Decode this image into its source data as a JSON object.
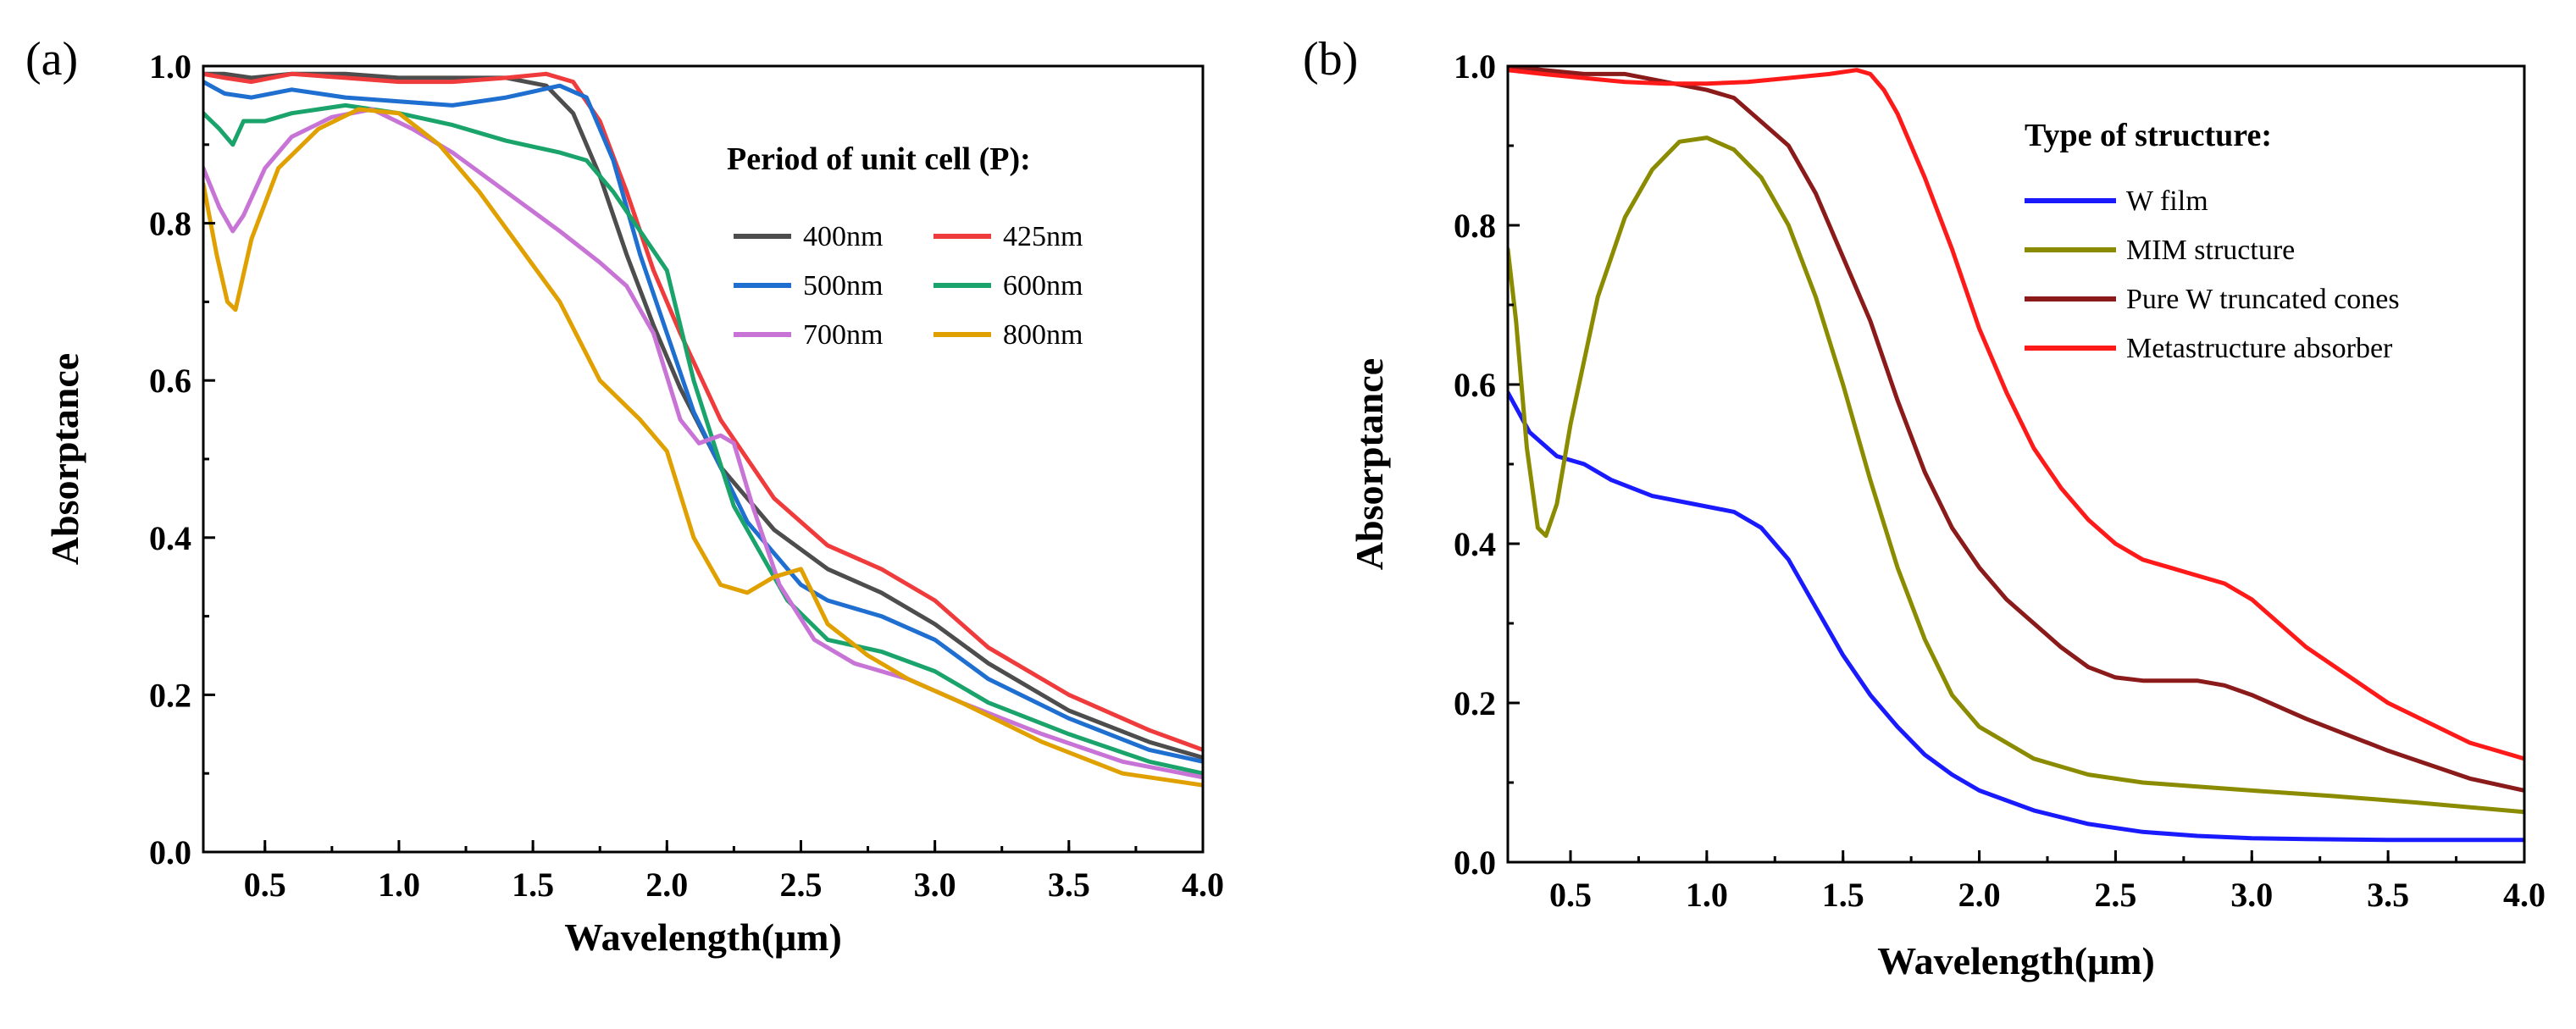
{
  "chart_data": [
    {
      "type": "line",
      "panel_label": "(a)",
      "title": "",
      "xlabel": "Wavelength(μm)",
      "ylabel": "Absorptance",
      "xlim": [
        0.27,
        4.0
      ],
      "ylim": [
        0.0,
        1.0
      ],
      "xticks": [
        0.5,
        1.0,
        1.5,
        2.0,
        2.5,
        3.0,
        3.5,
        4.0
      ],
      "yticks": [
        0.0,
        0.2,
        0.4,
        0.6,
        0.8,
        1.0
      ],
      "xtick_labels": [
        "0.5",
        "1.0",
        "1.5",
        "2.0",
        "2.5",
        "3.0",
        "3.5",
        "4.0"
      ],
      "ytick_labels": [
        "0.0",
        "0.2",
        "0.4",
        "0.6",
        "0.8",
        "1.0"
      ],
      "grid": false,
      "legend_title": "Period of unit cell (P):",
      "legend_position": "top-right",
      "series": [
        {
          "name": "400nm",
          "color": "#4d4d4d",
          "x": [
            0.27,
            0.35,
            0.45,
            0.6,
            0.8,
            1.0,
            1.2,
            1.4,
            1.55,
            1.65,
            1.75,
            1.85,
            1.95,
            2.05,
            2.2,
            2.4,
            2.6,
            2.8,
            3.0,
            3.2,
            3.5,
            3.8,
            4.0
          ],
          "y": [
            0.99,
            0.99,
            0.985,
            0.99,
            0.99,
            0.985,
            0.985,
            0.985,
            0.975,
            0.94,
            0.86,
            0.76,
            0.67,
            0.59,
            0.49,
            0.41,
            0.36,
            0.33,
            0.29,
            0.24,
            0.18,
            0.14,
            0.12
          ]
        },
        {
          "name": "425nm",
          "color": "#ef3b3b",
          "x": [
            0.27,
            0.35,
            0.45,
            0.6,
            0.8,
            1.0,
            1.2,
            1.4,
            1.55,
            1.65,
            1.75,
            1.85,
            1.95,
            2.05,
            2.2,
            2.4,
            2.6,
            2.8,
            3.0,
            3.2,
            3.5,
            3.8,
            4.0
          ],
          "y": [
            0.99,
            0.985,
            0.98,
            0.99,
            0.985,
            0.98,
            0.98,
            0.985,
            0.99,
            0.98,
            0.93,
            0.84,
            0.74,
            0.66,
            0.55,
            0.45,
            0.39,
            0.36,
            0.32,
            0.26,
            0.2,
            0.155,
            0.13
          ]
        },
        {
          "name": "500nm",
          "color": "#1f6fd1",
          "x": [
            0.27,
            0.35,
            0.45,
            0.6,
            0.8,
            1.0,
            1.2,
            1.4,
            1.6,
            1.7,
            1.8,
            1.9,
            2.0,
            2.1,
            2.3,
            2.5,
            2.6,
            2.8,
            3.0,
            3.2,
            3.5,
            3.8,
            4.0
          ],
          "y": [
            0.98,
            0.965,
            0.96,
            0.97,
            0.96,
            0.955,
            0.95,
            0.96,
            0.975,
            0.96,
            0.88,
            0.76,
            0.66,
            0.56,
            0.42,
            0.34,
            0.32,
            0.3,
            0.27,
            0.22,
            0.17,
            0.13,
            0.115
          ]
        },
        {
          "name": "600nm",
          "color": "#1aa36a",
          "x": [
            0.27,
            0.33,
            0.38,
            0.42,
            0.5,
            0.6,
            0.8,
            1.0,
            1.2,
            1.4,
            1.6,
            1.7,
            1.8,
            1.9,
            2.0,
            2.1,
            2.25,
            2.45,
            2.6,
            2.8,
            3.0,
            3.2,
            3.5,
            3.8,
            4.0
          ],
          "y": [
            0.94,
            0.92,
            0.9,
            0.93,
            0.93,
            0.94,
            0.95,
            0.94,
            0.925,
            0.905,
            0.89,
            0.88,
            0.84,
            0.79,
            0.74,
            0.6,
            0.44,
            0.32,
            0.27,
            0.255,
            0.23,
            0.19,
            0.15,
            0.115,
            0.1
          ]
        },
        {
          "name": "700nm",
          "color": "#c873d6",
          "x": [
            0.27,
            0.33,
            0.38,
            0.42,
            0.5,
            0.6,
            0.75,
            0.9,
            1.05,
            1.2,
            1.4,
            1.6,
            1.75,
            1.85,
            1.95,
            2.05,
            2.12,
            2.2,
            2.25,
            2.32,
            2.42,
            2.55,
            2.7,
            2.9,
            3.1,
            3.4,
            3.7,
            4.0
          ],
          "y": [
            0.87,
            0.82,
            0.79,
            0.81,
            0.87,
            0.91,
            0.935,
            0.945,
            0.92,
            0.89,
            0.84,
            0.79,
            0.75,
            0.72,
            0.66,
            0.55,
            0.52,
            0.53,
            0.52,
            0.44,
            0.34,
            0.27,
            0.24,
            0.22,
            0.19,
            0.15,
            0.115,
            0.095
          ]
        },
        {
          "name": "800nm",
          "color": "#e0a000",
          "x": [
            0.27,
            0.32,
            0.36,
            0.39,
            0.45,
            0.55,
            0.7,
            0.85,
            1.0,
            1.15,
            1.3,
            1.45,
            1.6,
            1.75,
            1.9,
            2.0,
            2.1,
            2.2,
            2.3,
            2.4,
            2.5,
            2.6,
            2.75,
            2.9,
            3.1,
            3.4,
            3.7,
            4.0
          ],
          "y": [
            0.85,
            0.76,
            0.7,
            0.69,
            0.78,
            0.87,
            0.92,
            0.945,
            0.94,
            0.9,
            0.84,
            0.77,
            0.7,
            0.6,
            0.55,
            0.51,
            0.4,
            0.34,
            0.33,
            0.35,
            0.36,
            0.29,
            0.25,
            0.22,
            0.19,
            0.14,
            0.1,
            0.085
          ]
        }
      ]
    },
    {
      "type": "line",
      "panel_label": "(b)",
      "title": "",
      "xlabel": "Wavelength(μm)",
      "ylabel": "Absorptance",
      "xlim": [
        0.27,
        4.0
      ],
      "ylim": [
        0.0,
        1.0
      ],
      "xticks": [
        0.5,
        1.0,
        1.5,
        2.0,
        2.5,
        3.0,
        3.5,
        4.0
      ],
      "yticks": [
        0.0,
        0.2,
        0.4,
        0.6,
        0.8,
        1.0
      ],
      "xtick_labels": [
        "0.5",
        "1.0",
        "1.5",
        "2.0",
        "2.5",
        "3.0",
        "3.5",
        "4.0"
      ],
      "ytick_labels": [
        "0.0",
        "0.2",
        "0.4",
        "0.6",
        "0.8",
        "1.0"
      ],
      "grid": false,
      "legend_title": "Type of structure:",
      "legend_position": "top-right",
      "series": [
        {
          "name": "W film",
          "color": "#1a1aff",
          "x": [
            0.27,
            0.35,
            0.45,
            0.55,
            0.65,
            0.8,
            0.95,
            1.1,
            1.2,
            1.3,
            1.4,
            1.5,
            1.6,
            1.7,
            1.8,
            1.9,
            2.0,
            2.2,
            2.4,
            2.6,
            2.8,
            3.0,
            3.2,
            3.5,
            4.0
          ],
          "y": [
            0.59,
            0.54,
            0.51,
            0.5,
            0.48,
            0.46,
            0.45,
            0.44,
            0.42,
            0.38,
            0.32,
            0.26,
            0.21,
            0.17,
            0.135,
            0.11,
            0.09,
            0.065,
            0.048,
            0.038,
            0.033,
            0.03,
            0.029,
            0.028,
            0.028
          ]
        },
        {
          "name": "MIM structure",
          "color": "#8b8b00",
          "x": [
            0.27,
            0.3,
            0.34,
            0.38,
            0.41,
            0.45,
            0.5,
            0.6,
            0.7,
            0.8,
            0.9,
            1.0,
            1.1,
            1.2,
            1.3,
            1.4,
            1.5,
            1.6,
            1.7,
            1.8,
            1.9,
            2.0,
            2.2,
            2.4,
            2.6,
            2.8,
            3.0,
            3.3,
            3.6,
            4.0
          ],
          "y": [
            0.77,
            0.68,
            0.52,
            0.42,
            0.41,
            0.45,
            0.55,
            0.71,
            0.81,
            0.87,
            0.905,
            0.91,
            0.895,
            0.86,
            0.8,
            0.71,
            0.6,
            0.48,
            0.37,
            0.28,
            0.21,
            0.17,
            0.13,
            0.11,
            0.1,
            0.095,
            0.09,
            0.083,
            0.075,
            0.063
          ]
        },
        {
          "name": "Pure W truncated cones",
          "color": "#8b1a1a",
          "x": [
            0.27,
            0.4,
            0.55,
            0.7,
            0.85,
            1.0,
            1.1,
            1.2,
            1.3,
            1.4,
            1.5,
            1.6,
            1.7,
            1.8,
            1.9,
            2.0,
            2.1,
            2.2,
            2.3,
            2.4,
            2.5,
            2.6,
            2.7,
            2.8,
            2.9,
            3.0,
            3.2,
            3.5,
            3.8,
            4.0
          ],
          "y": [
            1.0,
            0.995,
            0.99,
            0.99,
            0.98,
            0.97,
            0.96,
            0.93,
            0.9,
            0.84,
            0.76,
            0.68,
            0.58,
            0.49,
            0.42,
            0.37,
            0.33,
            0.3,
            0.27,
            0.245,
            0.232,
            0.228,
            0.228,
            0.228,
            0.222,
            0.21,
            0.18,
            0.14,
            0.105,
            0.09
          ]
        },
        {
          "name": "Metastructure absorber",
          "color": "#ff1a1a",
          "x": [
            0.27,
            0.4,
            0.55,
            0.7,
            0.85,
            1.0,
            1.15,
            1.3,
            1.45,
            1.55,
            1.6,
            1.65,
            1.7,
            1.8,
            1.9,
            2.0,
            2.1,
            2.2,
            2.3,
            2.4,
            2.5,
            2.6,
            2.7,
            2.8,
            2.9,
            3.0,
            3.2,
            3.5,
            3.8,
            4.0
          ],
          "y": [
            0.995,
            0.99,
            0.985,
            0.98,
            0.978,
            0.978,
            0.98,
            0.985,
            0.99,
            0.995,
            0.99,
            0.97,
            0.94,
            0.86,
            0.77,
            0.67,
            0.59,
            0.52,
            0.47,
            0.43,
            0.4,
            0.38,
            0.37,
            0.36,
            0.35,
            0.33,
            0.27,
            0.2,
            0.15,
            0.13
          ]
        }
      ]
    }
  ]
}
